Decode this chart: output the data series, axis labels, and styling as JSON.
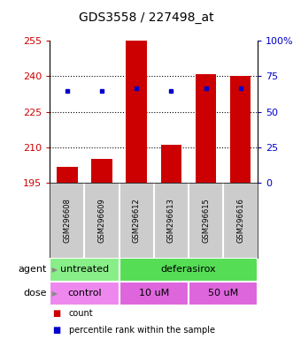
{
  "title": "GDS3558 / 227498_at",
  "samples": [
    "GSM296608",
    "GSM296609",
    "GSM296612",
    "GSM296613",
    "GSM296615",
    "GSM296616"
  ],
  "counts": [
    202,
    205,
    255,
    211,
    241,
    240
  ],
  "percentile_ranks": [
    234,
    234,
    235,
    234,
    235,
    235
  ],
  "ylim": [
    195,
    255
  ],
  "yticks": [
    195,
    210,
    225,
    240,
    255
  ],
  "right_positions": [
    195,
    210,
    225,
    240,
    255
  ],
  "right_labels": [
    "0",
    "25",
    "50",
    "75",
    "100%"
  ],
  "bar_color": "#cc0000",
  "dot_color": "#0000cc",
  "agent_groups": [
    {
      "label": "untreated",
      "start": 0,
      "end": 2,
      "color": "#88ee88"
    },
    {
      "label": "deferasirox",
      "start": 2,
      "end": 6,
      "color": "#55dd55"
    }
  ],
  "dose_groups": [
    {
      "label": "control",
      "start": 0,
      "end": 2,
      "color": "#ee88ee"
    },
    {
      "label": "10 uM",
      "start": 2,
      "end": 4,
      "color": "#dd66dd"
    },
    {
      "label": "50 uM",
      "start": 4,
      "end": 6,
      "color": "#dd66dd"
    }
  ],
  "legend_count_color": "#cc0000",
  "legend_dot_color": "#0000cc",
  "bg_color": "#ffffff",
  "sample_bg": "#cccccc",
  "title_fontsize": 10,
  "tick_fontsize": 8,
  "label_fontsize": 8,
  "sample_fontsize": 6,
  "bar_width": 0.6
}
